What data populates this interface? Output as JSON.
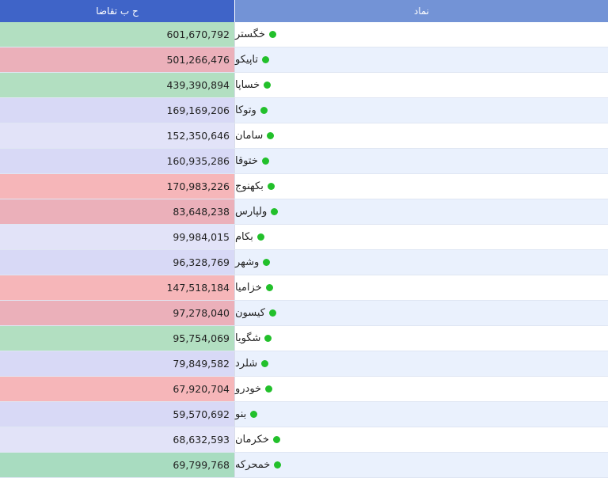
{
  "header": {
    "value_col_label": "ح ب تقاضا",
    "symbol_col_label": "نماد"
  },
  "status_dot_color": "#22c02b",
  "rows": [
    {
      "symbol": "خگستر",
      "value": "601,670,792",
      "color": "#b2dfc1"
    },
    {
      "symbol": "تاپیکو",
      "value": "501,266,476",
      "color": "#ebb0ba"
    },
    {
      "symbol": "خساپا",
      "value": "439,390,894",
      "color": "#b2dfc1"
    },
    {
      "symbol": "وتوکا",
      "value": "169,169,206",
      "color": "#d8d9f6"
    },
    {
      "symbol": "سامان",
      "value": "152,350,646",
      "color": "#e2e3f8"
    },
    {
      "symbol": "ختوقا",
      "value": "160,935,286",
      "color": "#d8d9f6"
    },
    {
      "symbol": "بکهنوج",
      "value": "170,983,226",
      "color": "#f6b6b9"
    },
    {
      "symbol": "ولپارس",
      "value": "83,648,238",
      "color": "#ebb0ba"
    },
    {
      "symbol": "بکام",
      "value": "99,984,015",
      "color": "#e2e3f8"
    },
    {
      "symbol": "وشهر",
      "value": "96,328,769",
      "color": "#d8d9f6"
    },
    {
      "symbol": "خزامیا",
      "value": "147,518,184",
      "color": "#f6b6b9"
    },
    {
      "symbol": "کیسون",
      "value": "97,278,040",
      "color": "#ebb0ba"
    },
    {
      "symbol": "شگویا",
      "value": "95,754,069",
      "color": "#b2dfc1"
    },
    {
      "symbol": "شلرد",
      "value": "79,849,582",
      "color": "#d8d9f6"
    },
    {
      "symbol": "خودرو",
      "value": "67,920,704",
      "color": "#f6b6b9"
    },
    {
      "symbol": "بنو",
      "value": "59,570,692",
      "color": "#d8d9f6"
    },
    {
      "symbol": "خکرمان",
      "value": "68,632,593",
      "color": "#e2e3f8"
    },
    {
      "symbol": "خمحرکه",
      "value": "69,799,768",
      "color": "#a8dcc0"
    }
  ]
}
